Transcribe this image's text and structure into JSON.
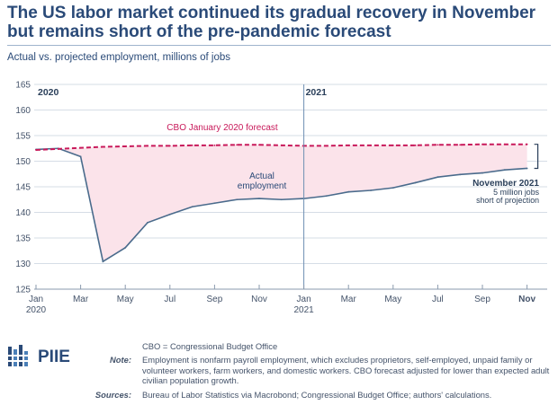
{
  "title": "The US labor market continued its gradual recovery in November but remains short of the pre-pandemic forecast",
  "subtitle": "Actual vs. projected employment, millions of jobs",
  "chart_data": {
    "type": "line",
    "ylim": [
      125,
      165
    ],
    "yticks": [
      125,
      130,
      135,
      140,
      145,
      150,
      155,
      160,
      165
    ],
    "x_tick_labels": [
      {
        "m": 0,
        "l1": "Jan",
        "l2": "2020"
      },
      {
        "m": 2,
        "l1": "Mar",
        "l2": ""
      },
      {
        "m": 4,
        "l1": "May",
        "l2": ""
      },
      {
        "m": 6,
        "l1": "Jul",
        "l2": ""
      },
      {
        "m": 8,
        "l1": "Sep",
        "l2": ""
      },
      {
        "m": 10,
        "l1": "Nov",
        "l2": ""
      },
      {
        "m": 12,
        "l1": "Jan",
        "l2": "2021"
      },
      {
        "m": 14,
        "l1": "Mar",
        "l2": ""
      },
      {
        "m": 16,
        "l1": "May",
        "l2": ""
      },
      {
        "m": 18,
        "l1": "Jul",
        "l2": ""
      },
      {
        "m": 20,
        "l1": "Sep",
        "l2": ""
      },
      {
        "m": 22,
        "l1": "Nov",
        "l2": "",
        "bold": true
      }
    ],
    "year_labels": [
      {
        "m": 0,
        "label": "2020"
      },
      {
        "m": 12,
        "label": "2021"
      }
    ],
    "grid": true,
    "series": [
      {
        "name": "Actual employment",
        "key": "actual",
        "color": "#4a6b8c",
        "style": "solid",
        "x": [
          "Jan 2020",
          "Feb 2020",
          "Mar 2020",
          "Apr 2020",
          "May 2020",
          "Jun 2020",
          "Jul 2020",
          "Aug 2020",
          "Sep 2020",
          "Oct 2020",
          "Nov 2020",
          "Dec 2020",
          "Jan 2021",
          "Feb 2021",
          "Mar 2021",
          "Apr 2021",
          "May 2021",
          "Jun 2021",
          "Jul 2021",
          "Aug 2021",
          "Sep 2021",
          "Oct 2021",
          "Nov 2021"
        ],
        "values": [
          152.3,
          152.5,
          150.9,
          130.4,
          133.1,
          138.0,
          139.6,
          141.1,
          141.8,
          142.5,
          142.7,
          142.5,
          142.7,
          143.2,
          144.0,
          144.3,
          144.8,
          145.8,
          146.9,
          147.4,
          147.7,
          148.3,
          148.6
        ]
      },
      {
        "name": "CBO January 2020 forecast",
        "key": "forecast",
        "color": "#c8195a",
        "style": "dashed",
        "x": [
          "Jan 2020",
          "Feb 2020",
          "Mar 2020",
          "Apr 2020",
          "May 2020",
          "Jun 2020",
          "Jul 2020",
          "Aug 2020",
          "Sep 2020",
          "Oct 2020",
          "Nov 2020",
          "Dec 2020",
          "Jan 2021",
          "Feb 2021",
          "Mar 2021",
          "Apr 2021",
          "May 2021",
          "Jun 2021",
          "Jul 2021",
          "Aug 2021",
          "Sep 2021",
          "Oct 2021",
          "Nov 2021"
        ],
        "values": [
          152.2,
          152.4,
          152.6,
          152.8,
          152.9,
          153.0,
          153.0,
          153.1,
          153.1,
          153.2,
          153.2,
          153.1,
          153.0,
          153.0,
          153.1,
          153.1,
          153.1,
          153.1,
          153.2,
          153.2,
          153.3,
          153.3,
          153.3
        ]
      }
    ],
    "annotations": {
      "forecast_label": "CBO January 2020 forecast",
      "actual_label_1": "Actual",
      "actual_label_2": "employment",
      "gap_title": "November 2021",
      "gap_line_1": "5 million jobs",
      "gap_line_2": "short of projection"
    }
  },
  "footer": {
    "logo": "PIIE",
    "abbrev": "CBO = Congressional Budget Office",
    "note_label": "Note:",
    "note": "Employment is nonfarm payroll employment, which excludes proprietors, self-employed, unpaid family or volunteer workers, farm workers, and domestic workers. CBO forecast adjusted for lower than expected adult civilian population growth.",
    "sources_label": "Sources:",
    "sources": "Bureau of Labor Statistics via Macrobond; Congressional Budget Office; authors' calculations."
  },
  "colors": {
    "title": "#2a4a78",
    "actual": "#4a6b8c",
    "forecast": "#c8195a",
    "gap_fill": "#fbe3ea",
    "grid": "#d6dde6"
  }
}
